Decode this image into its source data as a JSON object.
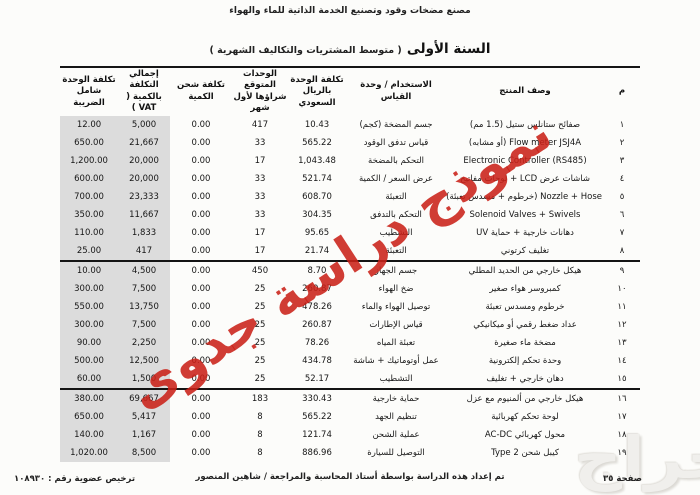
{
  "page": {
    "top_header": "مصنع مضخات وقود وتصنيع الخدمة الذاتية للماء والهواء",
    "title": "السنة الأولى",
    "subtitle": "( متوسط المشتريات والتكاليف الشهرية )"
  },
  "watermark": {
    "diagonal_text": "نموذج دراسة جدوى",
    "diagonal_color": "#c92118",
    "logo_text": "حراج"
  },
  "table": {
    "columns": [
      {
        "key": "serial",
        "label": "م"
      },
      {
        "key": "description",
        "label": "وصف المنتج"
      },
      {
        "key": "usage",
        "label": "الاستخدام / وحدة\nالقياس"
      },
      {
        "key": "unit_cost",
        "label": "تكلفة الوحدة بالريال\nالسعودي"
      },
      {
        "key": "units",
        "label": "الوحدات المتوقع\nشراؤها لأول شهر"
      },
      {
        "key": "shipping",
        "label": "تكلفة شحن الكمية"
      },
      {
        "key": "total",
        "label": "إجمالي التكلفة\nبالكمية ( VAT )"
      },
      {
        "key": "unit_cost_tax",
        "label": "تكلفة الوحدة\nشامل الضريبة"
      }
    ],
    "shaded_columns": [
      "total",
      "unit_cost_tax"
    ],
    "section_breaks_after": [
      8,
      15
    ],
    "rows": [
      {
        "serial": "١",
        "description": "صفائح ستانلس ستيل (1.5 مم)",
        "usage": "جسم المضخة (كجم)",
        "unit_cost": "10.43",
        "units": "417",
        "shipping": "0.00",
        "total": "5,000",
        "unit_cost_tax": "12.00"
      },
      {
        "serial": "٢",
        "description": "Flow meter JSJ4A (أو مشابه)",
        "usage": "قياس تدفق الوقود",
        "unit_cost": "565.22",
        "units": "33",
        "shipping": "0.00",
        "total": "21,667",
        "unit_cost_tax": "650.00"
      },
      {
        "serial": "٣",
        "description": "Electronic Controller (RS485)",
        "usage": "التحكم بالمضخة",
        "unit_cost": "1,043.48",
        "units": "17",
        "shipping": "0.00",
        "total": "20,000",
        "unit_cost_tax": "1,200.00"
      },
      {
        "serial": "٤",
        "description": "شاشات عرض LCD + لوحات مفاتيح",
        "usage": "عرض السعر / الكمية",
        "unit_cost": "521.74",
        "units": "33",
        "shipping": "0.00",
        "total": "20,000",
        "unit_cost_tax": "600.00"
      },
      {
        "serial": "٥",
        "description": "Nozzle + Hose (خرطوم + مسدس تعبئة)",
        "usage": "التعبئة",
        "unit_cost": "608.70",
        "units": "33",
        "shipping": "0.00",
        "total": "23,333",
        "unit_cost_tax": "700.00"
      },
      {
        "serial": "٦",
        "description": "Solenoid Valves + Swivels",
        "usage": "التحكم بالتدفق",
        "unit_cost": "304.35",
        "units": "33",
        "shipping": "0.00",
        "total": "11,667",
        "unit_cost_tax": "350.00"
      },
      {
        "serial": "٧",
        "description": "دهانات خارجية + حماية UV",
        "usage": "التشطيب",
        "unit_cost": "95.65",
        "units": "17",
        "shipping": "0.00",
        "total": "1,833",
        "unit_cost_tax": "110.00"
      },
      {
        "serial": "٨",
        "description": "تغليف كرتوني",
        "usage": "التعبئة",
        "unit_cost": "21.74",
        "units": "17",
        "shipping": "0.00",
        "total": "417",
        "unit_cost_tax": "25.00"
      },
      {
        "serial": "٩",
        "description": "هيكل خارجي من الحديد المطلي",
        "usage": "جسم الجهاز",
        "unit_cost": "8.70",
        "units": "450",
        "shipping": "0.00",
        "total": "4,500",
        "unit_cost_tax": "10.00"
      },
      {
        "serial": "١٠",
        "description": "كمبروسر هواء صغير",
        "usage": "ضخ الهواء",
        "unit_cost": "260.87",
        "units": "25",
        "shipping": "0.00",
        "total": "7,500",
        "unit_cost_tax": "300.00"
      },
      {
        "serial": "١١",
        "description": "خرطوم ومسدس تعبئة",
        "usage": "توصيل الهواء والماء",
        "unit_cost": "478.26",
        "units": "25",
        "shipping": "0.00",
        "total": "13,750",
        "unit_cost_tax": "550.00"
      },
      {
        "serial": "١٢",
        "description": "عداد ضغط رقمي أو ميكانيكي",
        "usage": "قياس الإطارات",
        "unit_cost": "260.87",
        "units": "25",
        "shipping": "0.00",
        "total": "7,500",
        "unit_cost_tax": "300.00"
      },
      {
        "serial": "١٣",
        "description": "مضخة ماء صغيرة",
        "usage": "تعبئة المياه",
        "unit_cost": "78.26",
        "units": "25",
        "shipping": "0.00",
        "total": "2,250",
        "unit_cost_tax": "90.00"
      },
      {
        "serial": "١٤",
        "description": "وحدة تحكم إلكترونية",
        "usage": "عمل أوتوماتيك + شاشة",
        "unit_cost": "434.78",
        "units": "25",
        "shipping": "0.00",
        "total": "12,500",
        "unit_cost_tax": "500.00"
      },
      {
        "serial": "١٥",
        "description": "دهان خارجي + تغليف",
        "usage": "التشطيب",
        "unit_cost": "52.17",
        "units": "25",
        "shipping": "0.00",
        "total": "1,500",
        "unit_cost_tax": "60.00"
      },
      {
        "serial": "١٦",
        "description": "هيكل خارجي من ألمنيوم مع عزل",
        "usage": "حماية خارجية",
        "unit_cost": "330.43",
        "units": "183",
        "shipping": "0.00",
        "total": "69,667",
        "unit_cost_tax": "380.00"
      },
      {
        "serial": "١٧",
        "description": "لوحة تحكم كهربائية",
        "usage": "تنظيم الجهد",
        "unit_cost": "565.22",
        "units": "8",
        "shipping": "0.00",
        "total": "5,417",
        "unit_cost_tax": "650.00"
      },
      {
        "serial": "١٨",
        "description": "محول كهربائي AC-DC",
        "usage": "عملية الشحن",
        "unit_cost": "121.74",
        "units": "8",
        "shipping": "0.00",
        "total": "1,167",
        "unit_cost_tax": "140.00"
      },
      {
        "serial": "١٩",
        "description": "كيبل شحن Type 2",
        "usage": "التوصيل للسيارة",
        "unit_cost": "886.96",
        "units": "8",
        "shipping": "0.00",
        "total": "8,500",
        "unit_cost_tax": "1,020.00"
      }
    ]
  },
  "footer": {
    "page_label": "صفحة ٣٥",
    "prepared_by": "تم إعداد هذه الدراسة بواسطة أستاذ المحاسبة والمراجعة / شاهين المنصور",
    "license": "ترخيص عضوية رقم : ١٠٨٩٣٠"
  }
}
